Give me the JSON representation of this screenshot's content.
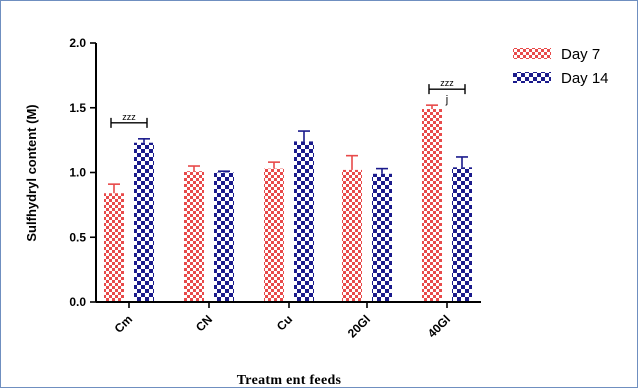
{
  "chart_data": {
    "type": "bar",
    "title": "",
    "xlabel": "Treatm ent feeds",
    "ylabel": "Sulfhydryl content (M)",
    "ylim": [
      0,
      2.0
    ],
    "yticks": [
      "0.0",
      "0.5",
      "1.0",
      "1.5",
      "2.0"
    ],
    "categories": [
      "Cm",
      "CN",
      "Cu",
      "20Gl",
      "40Gl"
    ],
    "series": [
      {
        "name": "Day 7",
        "color": "#e84a4a",
        "pattern": "red-checker",
        "values": [
          0.84,
          1.01,
          1.03,
          1.02,
          1.49
        ],
        "errors": [
          0.07,
          0.04,
          0.05,
          0.11,
          0.03
        ]
      },
      {
        "name": "Day 14",
        "color": "#1a1a8c",
        "pattern": "navy-checker",
        "values": [
          1.23,
          1.0,
          1.24,
          0.99,
          1.04
        ],
        "errors": [
          0.03,
          0.01,
          0.08,
          0.04,
          0.08
        ]
      }
    ],
    "annotations": [
      {
        "category": "Cm",
        "text": "zzz",
        "type": "bracket"
      },
      {
        "category": "40Gl",
        "text": "zzz",
        "type": "bracket"
      },
      {
        "category": "40Gl",
        "text": "j",
        "type": "label"
      }
    ],
    "legend_position": "top-right",
    "grid": false
  }
}
